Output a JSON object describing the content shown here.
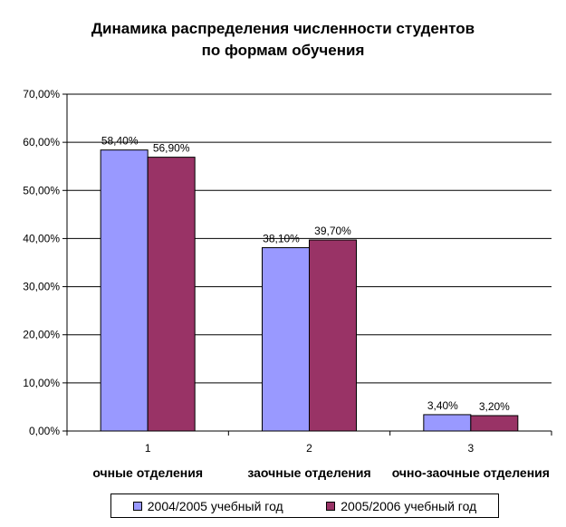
{
  "chart_data": {
    "type": "bar",
    "title": [
      "Динамика распределения численности студентов",
      "по формам обучения"
    ],
    "xlabel": "",
    "ylabel": "",
    "ylim": [
      0,
      70
    ],
    "yticks": [
      "0,00%",
      "10,00%",
      "20,00%",
      "30,00%",
      "40,00%",
      "50,00%",
      "60,00%",
      "70,00%"
    ],
    "grid": true,
    "legend_position": "bottom",
    "categories": [
      "1",
      "2",
      "3"
    ],
    "category_names": [
      "очные отделения",
      "заочные отделения",
      "очно-заочные отделения"
    ],
    "series": [
      {
        "name": "2004/2005 учебный год",
        "color": "#9999ff",
        "values": [
          58.4,
          38.1,
          3.4
        ],
        "labels": [
          "58,40%",
          "38,10%",
          "3,40%"
        ]
      },
      {
        "name": "2005/2006 учебный год",
        "color": "#993366",
        "values": [
          56.9,
          39.7,
          3.2
        ],
        "labels": [
          "56,90%",
          "39,70%",
          "3,20%"
        ]
      }
    ]
  }
}
